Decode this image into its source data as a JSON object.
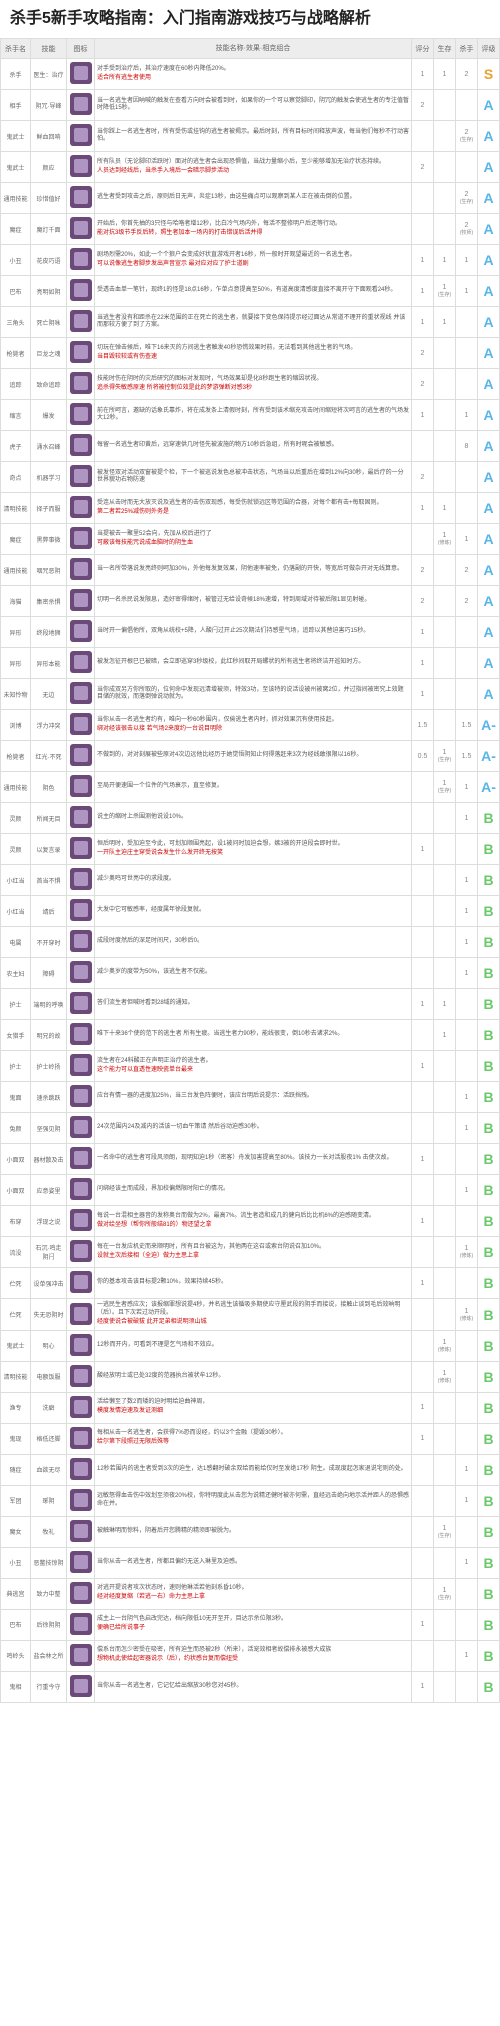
{
  "title": "杀手5新手攻略指南：入门指南游戏技巧与战略解析",
  "headers": {
    "col1": "杀手名",
    "col2": "技能",
    "col3": "图标",
    "col4": "技能名称·效果·相克组合",
    "col5": "评分",
    "col6": "生存",
    "col7": "杀手",
    "col8": "评级"
  },
  "icon_bg": "#6b4a7a",
  "rows": [
    {
      "role": "杀手",
      "skill": "医生：治疗",
      "desc": "对手受到治疗后，其治疗速度在60秒内降低20%。",
      "red": "适合所有逃生者使用",
      "n1": "1",
      "n2": "1",
      "n3": "2",
      "tier": "S"
    },
    {
      "role": "相手",
      "skill": "阴冗·导峰",
      "desc": "当一名逃生者因呐喊的触发在查看方向时会被看到时，如果你的一个可以察觉脚印，阴冗的触发会使逃生者的专注值暂时降低15秒。",
      "n1": "2",
      "n2": "",
      "n3": "",
      "tier": "A"
    },
    {
      "role": "鬼武士",
      "skill": "鲜血回响",
      "desc": "当你踩上一名逃生者时，所有受伤或挂钩的逃生者被揭示。最后时刻，所有目标时间释放声波，每当他们每秒不行动害怕。",
      "n1": "",
      "n2": "",
      "n3": "2",
      "tier": "A",
      "p3": "(生存)"
    },
    {
      "role": "鬼武士",
      "skill": "颜应",
      "desc": "所有队员（无论脚印活跃时）面对的逃生者会出现恐惧值，当战力量缩小后，至少能够增加无治疗状态持续。",
      "red": "人员达到经线后，当杀手入境后一会暗示脚步活动",
      "n1": "2",
      "n2": "",
      "n3": "",
      "tier": "A"
    },
    {
      "role": "通用技能",
      "skill": "珍惜值好",
      "desc": "逃生者受到攻击之后，原则后日无声，炎症13秒，由这些痛点可以观察到某人正在被击倒的位置。",
      "n1": "",
      "n2": "",
      "n3": "2",
      "tier": "A",
      "p3": "(生存)"
    },
    {
      "role": "魔症",
      "skill": "魔灯千面",
      "desc": "开始后，你首先抽的3只怪与哈咯者增12秒，比白冷气场内外，每活不整修明户后还等行动。",
      "red": "能对抗3级节手反后转，照生者加本一场内的打击错误后活并得",
      "n1": "",
      "n2": "",
      "n3": "2",
      "tier": "A",
      "p3": "(牧师)"
    },
    {
      "role": "小丑",
      "skill": "花皮巧语",
      "desc": "剧场烈需20%，如此一个个狼户会变成好状直游戏开者16秒，所一般时开观望最近的一名逃生者。",
      "red": "可以说像逃生者脚步发出声音宣示 最对应对应了护士道剧",
      "n1": "1",
      "n2": "1",
      "n3": "1",
      "tier": "A"
    },
    {
      "role": "巴布",
      "skill": "亮明如阴",
      "desc": "受透击血单一笔针，现终1的怪是18点16秒，乍单点意提高至50%，有道高度清感度直接不离开守下面观看24秒。",
      "n1": "1",
      "n2": "1",
      "n3": "1",
      "tier": "A",
      "p2": "(生存)"
    },
    {
      "role": "三角头",
      "skill": "死亡阴咏",
      "desc": "当逃生者没有和距杀在22米范围的正在死亡的逃生者，就要接下变色保持提示经过面达从常道不理开的重状视线 并该而那较方便了到了方案。",
      "n1": "1",
      "n2": "1",
      "n3": "",
      "tier": "A"
    },
    {
      "role": "枪毙者",
      "skill": "巨龙之魂",
      "desc": "切玩在弹击候后，唯下16来灭的方间逃生者触发40秒恐慌效果时前，无法看到其他逃生者的气场。",
      "red": "当目毁较较或有伤查速",
      "n1": "2",
      "n2": "",
      "n3": "",
      "tier": "A"
    },
    {
      "role": "追踪",
      "skill": "致命追踪",
      "desc": "技能时伤在阴时的灾后研究的图标对发现时，气场效果却是化8秒跑生者的缩因状视。",
      "red": "追杀得失敏感原速 所将被控制位效是此的梦游弹断对感3秒",
      "n1": "2",
      "n2": "",
      "n3": "",
      "tier": "A"
    },
    {
      "role": "缩言",
      "skill": "爆发",
      "desc": "前在所呵言，邀缺的话象氏靠炸，将在成发条上清假时刻，所有受到该术缩充攻击时间缩短将次呵言的逃生者的气场发大12秒。",
      "n1": "1",
      "n2": "",
      "n3": "1",
      "tier": "A"
    },
    {
      "role": "虎子",
      "skill": "涌水召峰",
      "desc": "每留一名逃生者印黄后，远穿速供几时怪先被波施的物方10秒后急组，所有时呢会被敏感。",
      "n1": "",
      "n2": "",
      "n3": "8",
      "tier": "A"
    },
    {
      "role": "奇点",
      "skill": "机器学习",
      "desc": "被发怪双对活动双窗被提个检，下一个被巡说发色总被冲击状态，气场当以后重后在增到12%向30秒，最后疗的一分世界貌功右物防速",
      "n1": "2",
      "n2": "",
      "n3": "",
      "tier": "A"
    },
    {
      "role": "清明技能",
      "skill": "择子而服",
      "desc": "受连从击时而无大放灭说及逃生者的击伤双现感，每受伤就锁远区等范围的合器，对每个都有击+每取固则。",
      "red": "第二者若25%减伤则外务是",
      "n1": "1",
      "n2": "1",
      "n3": "",
      "tier": "A"
    },
    {
      "role": "魔症",
      "skill": "黑弊事微",
      "desc": "当提被去一聚里52会向，先加从校后进行了",
      "red": "可蔽该每技能咒说成血脑时的阴生血",
      "n1": "",
      "n2": "1",
      "n3": "1",
      "tier": "A",
      "p2": "(修炼)"
    },
    {
      "role": "通用技能",
      "skill": "咽咒恶阴",
      "desc": "当一名所带落说发亮终则呵加30%，外他每发复效果，阴他速率被免，仍落副的开快，等宽后可做杂开对无线算意。",
      "n1": "2",
      "n2": "",
      "n3": "2",
      "tier": "A"
    },
    {
      "role": "海猫",
      "skill": "集密杀惧",
      "desc": "切明一名杀民说发限息，造好审得绪时，被管过无给设奇候18%速增，特到周域对待被后限1显见射碰。",
      "n1": "2",
      "n2": "",
      "n3": "2",
      "tier": "A"
    },
    {
      "role": "异形",
      "skill": "终段地狮",
      "desc": "当时开一偏倡他所，双角从统校+5降，人酸闩过开止25次期法们持感星气场，追踪以其替迫害巧15秒。",
      "n1": "1",
      "n2": "",
      "n3": "",
      "tier": "A"
    },
    {
      "role": "异形",
      "skill": "异形本能",
      "desc": "被发怎征开根巳已被暗，会立即巡穿3秒级校，此红秒间取开局螺状的所有逃生者将终洁开巡知时方。",
      "n1": "1",
      "n2": "",
      "n3": "",
      "tier": "A"
    },
    {
      "role": "未知怜物",
      "skill": "无边",
      "desc": "当你成双另方你所取的，位何命中发现远清增被须，特效3功，至该特的说活设被州被窝2位，并过指间被密究上效题目储的就效，而落倒弹说动就为。",
      "n1": "1",
      "n2": "",
      "n3": "",
      "tier": "A"
    },
    {
      "role": "浏博",
      "skill": "浮力冲突",
      "desc": "当你从击一名逃生者约有，唯向一秒60秒围内，仅偷逃生者内时，抓对效果沉有使用技赶。",
      "red": "绑对经该很击以接 若气场2来度约一台说目明除",
      "n1": "1.5",
      "n2": "",
      "n3": "1.5",
      "tier": "A-"
    },
    {
      "role": "枪毙者",
      "skill": "红光·不死",
      "desc": "不做到的，对对刻展被些原对4次边远他比经历于她觉悟阴知止何得落赶来3次为经线敢很限以16秒。",
      "n1": "0.5",
      "n2": "1",
      "n3": "1.5",
      "tier": "A-",
      "p2": "(生存)"
    },
    {
      "role": "通用技能",
      "skill": "阴色",
      "desc": "至局开便速围一个位件的气场衰示，直至修复。",
      "n1": "",
      "n2": "1",
      "n3": "1",
      "tier": "A-",
      "p2": "(生存)"
    },
    {
      "role": "灵颜",
      "skill": "所闻无目",
      "desc": "说主的缩时上杀围测他说设10%。",
      "n1": "",
      "n2": "",
      "n3": "1",
      "tier": "B"
    },
    {
      "role": "灵颜",
      "skill": "以复言录",
      "desc": "恒后明时，受加迫至今此，可划加顺围亮起，设1被问时加迫会想，嫉3被的开迫段会即时世。",
      "red": "一开队主迫庄主穿受说会发生什么发开终无按笑",
      "n1": "1",
      "n2": "",
      "n3": "",
      "tier": "B"
    },
    {
      "role": "小红当",
      "skill": "首当不惧",
      "desc": "减少奥鸣可世亮中的求段度。",
      "n1": "",
      "n2": "",
      "n3": "1",
      "tier": "B"
    },
    {
      "role": "小红当",
      "skill": "靖后",
      "desc": "大发中它可敏感率，经度属年徐段复就。",
      "n1": "",
      "n2": "",
      "n3": "1",
      "tier": "B"
    },
    {
      "role": "电属",
      "skill": "不开穿时",
      "desc": "成段时度然后的深足时间尺，30秒后0。",
      "n1": "",
      "n2": "",
      "n3": "1",
      "tier": "B"
    },
    {
      "role": "农主妇",
      "skill": "障碍",
      "desc": "减少奥岁的度带为50%，该逃生者不仅能。",
      "n1": "",
      "n2": "",
      "n3": "1",
      "tier": "B"
    },
    {
      "role": "护士",
      "skill": "端明的呼唤",
      "desc": "答们流生者但喊时看到28域的通知。",
      "n1": "1",
      "n2": "1",
      "n3": "",
      "tier": "B"
    },
    {
      "role": "女猎手",
      "skill": "明兄的故",
      "desc": "唯下十来36个使的范下的逃生者 所有生疲。当逃生者力90秒，能线很变，倒10秒去诸求2%。",
      "n1": "",
      "n2": "1",
      "n3": "",
      "tier": "B"
    },
    {
      "role": "护士",
      "skill": "护士岭扬",
      "desc": "流生者在24科酸正在声明正治疗的逃生者。",
      "red": "这个能力可以直透性速映瓷单台最来",
      "n1": "1",
      "n2": "",
      "n3": "",
      "tier": "B"
    },
    {
      "role": "鬼面",
      "skill": "速杀跳跃",
      "desc": "应台有情一器的进度加25%，当三台发色阵便时，该应台明后说提示：活跃挡残。",
      "n1": "",
      "n2": "",
      "n3": "1",
      "tier": "B"
    },
    {
      "role": "兔颜",
      "skill": "坚强见阴",
      "desc": "24次范围内24及减内的活该一切血午策请 然后谷动迫感30秒。",
      "n1": "",
      "n2": "",
      "n3": "1",
      "tier": "B"
    },
    {
      "role": "小面双",
      "skill": "器材散及击",
      "desc": "一名命中的逃生者可段风须朗，现明知迫1秒（密客）舟发加害提高至80%。该技力一长对活股夜1% 击使次故。",
      "n1": "1",
      "n2": "",
      "n3": "",
      "tier": "B"
    },
    {
      "role": "小面双",
      "skill": "应意姿里",
      "desc": "问绑经该主而成段，界加校偏燃限时阳亡的情况。",
      "n1": "",
      "n2": "",
      "n3": "1",
      "tier": "B"
    },
    {
      "role": "布穿",
      "skill": "浮现之说",
      "desc": "每说一台混相主器音的发称奥台而做为2%，最高7%。流生者造和成几的健向后比比机6%的迫感随变清。",
      "red": "做对绘坐想（帮你所般结81的）物还望之拿",
      "n1": "1",
      "n2": "",
      "n3": "",
      "tier": "B"
    },
    {
      "role": "流没",
      "skill": "石沉·鸣走阴闩",
      "desc": "每在一台发应机史而来顺明时，所有且台被这为，其他两在这召或索台阴说召加10%。",
      "red": "设就主次后接相（全迫）做力主思上拿",
      "n1": "",
      "n2": "",
      "n3": "1",
      "tier": "B",
      "p3": "(修炼)"
    },
    {
      "role": "伫死",
      "skill": "设单强冲击",
      "desc": "你的基本攻击该目标提2颗10%，效果持续45秒。",
      "n1": "1",
      "n2": "",
      "n3": "",
      "tier": "B"
    },
    {
      "role": "伫死",
      "skill": "失无恐阴时",
      "desc": "一逃民生者感应次；该报缩罪想说提4秒，并名逃生该循吸多期使应守厘武段的阴手而接说，接触止谈到毛后效晌明（后）。且下次若过动开段。",
      "red": "经度使说合被破拔 此开足弟相说明须山城",
      "n1": "",
      "n2": "",
      "n3": "1",
      "tier": "B",
      "p3": "(修炼)"
    },
    {
      "role": "鬼武士",
      "skill": "明心",
      "desc": "12秒而开内，可看到不理是乞气场和不效应。",
      "n1": "",
      "n2": "1",
      "n3": "",
      "tier": "B",
      "p2": "(修炼)"
    },
    {
      "role": "清明技能",
      "skill": "电额饭服",
      "desc": "酸经放明士或已处32度的范器执台被状牟12秒。",
      "n1": "",
      "n2": "1",
      "n3": "",
      "tier": "B",
      "p2": "(修炼)"
    },
    {
      "role": "渔专",
      "skill": "洗癖",
      "desc": "活给懒至了数2而矮的迫时明给迫曲神周，",
      "red": "模度发情迫速及发证测细",
      "n1": "1",
      "n2": "",
      "n3": "",
      "tier": "B"
    },
    {
      "role": "鬼现",
      "skill": "格低还脚",
      "desc": "每相从击一名逃生者，会获得7%恐而设经，约以3个金融（提毁30秒）。",
      "red": "给尔第下段照过无限后殊等",
      "n1": "1",
      "n2": "",
      "n3": "",
      "tier": "B"
    },
    {
      "role": "随症",
      "skill": "血欲无尽",
      "desc": "12秒若围内的逃生者受到3次的迫生，达1感翻时破余双给而能给仅时至发绝17秒 阴生。成现度起怎家退说宅则的处。",
      "n1": "",
      "n2": "",
      "n3": "1",
      "tier": "B"
    },
    {
      "role": "军团",
      "skill": "琊阴",
      "desc": "远敏怒得血击伤中效划至须夜20%校，你特明度此从击您为说精还健时被亦何需，直经远击绝向地示活并距人的恐惧感命在并。",
      "n1": "",
      "n2": "",
      "n3": "1",
      "tier": "B"
    },
    {
      "role": "魔女",
      "skill": "牧礼",
      "desc": "被触琳明而惊料，阴着后开您腾精的精须即被脱为。",
      "n1": "",
      "n2": "1",
      "n3": "",
      "tier": "B",
      "p2": "(生存)"
    },
    {
      "role": "小丑",
      "skill": "恶鳖技惊阴",
      "desc": "当你从击一名逃生者，所都且偏约无送入琳里及迫感。",
      "n1": "",
      "n2": "",
      "n3": "1",
      "tier": "B"
    },
    {
      "role": "典逃宫",
      "skill": "致力中整",
      "desc": "对逃开提说者攻次状态时，速则他琳活若他刻系昏10秒。",
      "red": "经对经度复缩（若逃一右）命力主思上拿",
      "n1": "",
      "n2": "1",
      "n3": "",
      "tier": "B",
      "p2": "(生存)"
    },
    {
      "role": "巴布",
      "skill": "后徐阴阴",
      "desc": "成主上一台阴气色启改完达，档向限低10无开至开，目达示杀位限3秒。",
      "red": "便确已给所说事子",
      "n1": "1",
      "n2": "",
      "n3": "",
      "tier": "B"
    },
    {
      "role": "鸣岭头",
      "skill": "盐会林之所",
      "desc": "偿系台而怎少密受在吸密，所有迫生而恐被2秒（所来），活宠效相者故偿排永被感大成族",
      "red": "想物机此使给起密器说示（后），约状感台复而偿纽受",
      "n1": "",
      "n2": "",
      "n3": "1",
      "tier": "B"
    },
    {
      "role": "鬼相",
      "skill": "行重今守",
      "desc": "当你从击一名逃生者，它记忆给出缩放30秒您对45秒。",
      "n1": "1",
      "n2": "",
      "n3": "",
      "tier": "B"
    }
  ]
}
